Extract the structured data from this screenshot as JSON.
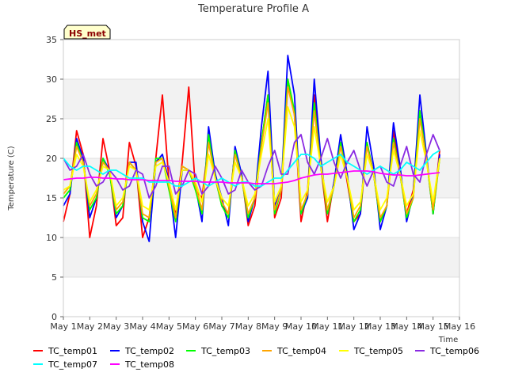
{
  "chart_data": {
    "type": "line",
    "title": "Temperature Profile A",
    "xlabel": "Time",
    "ylabel": "Temperature (C)",
    "badge": "HS_met",
    "xlim": [
      "May 1",
      "May 16"
    ],
    "ylim": [
      0,
      35
    ],
    "x_ticks": [
      "May 1",
      "May 2",
      "May 3",
      "May 4",
      "May 5",
      "May 6",
      "May 7",
      "May 8",
      "May 9",
      "May 10",
      "May 11",
      "May 12",
      "May 13",
      "May 14",
      "May 15",
      "May 16"
    ],
    "y_ticks": [
      0,
      5,
      10,
      15,
      20,
      25,
      30,
      35
    ],
    "grid": "horizontal bands",
    "legend_position": "bottom",
    "x_day_of_may": [
      1,
      1.25,
      1.5,
      1.75,
      2,
      2.25,
      2.5,
      2.75,
      3,
      3.25,
      3.5,
      3.75,
      4,
      4.25,
      4.5,
      4.75,
      5,
      5.25,
      5.5,
      5.75,
      6,
      6.25,
      6.5,
      6.75,
      7,
      7.25,
      7.5,
      7.75,
      8,
      8.25,
      8.5,
      8.75,
      9,
      9.25,
      9.5,
      9.75,
      10,
      10.25,
      10.5,
      10.75,
      11,
      11.25,
      11.5,
      11.75,
      12,
      12.25,
      12.5,
      12.75,
      13,
      13.25,
      13.5,
      13.75,
      14,
      14.25,
      14.5,
      14.75,
      15,
      15.25
    ],
    "series": [
      {
        "name": "TC_temp01",
        "color": "#ff0000",
        "values": [
          12,
          15.5,
          23.5,
          20.5,
          10,
          14,
          22.5,
          18.5,
          11.5,
          12.5,
          22,
          19,
          10,
          12.5,
          20,
          28,
          17,
          13,
          19.5,
          29,
          16,
          15,
          22,
          18,
          14,
          13,
          21,
          18,
          11.5,
          14,
          22,
          28,
          12.5,
          15,
          30,
          25.5,
          12,
          16,
          28,
          19,
          12,
          17,
          22,
          17,
          12,
          13,
          22,
          18,
          12,
          14,
          23.5,
          18,
          13,
          16,
          26,
          20,
          13,
          21
        ]
      },
      {
        "name": "TC_temp02",
        "color": "#0000ff",
        "values": [
          14,
          15.5,
          22.5,
          20,
          12.5,
          15,
          20,
          18.5,
          12.5,
          14,
          19.5,
          19.5,
          12,
          9.5,
          19.5,
          20.5,
          17,
          10,
          18.5,
          18.5,
          16.5,
          12,
          24,
          18,
          15,
          11.5,
          21.5,
          18,
          12,
          15,
          24,
          31,
          14,
          16,
          33,
          28,
          13,
          15,
          30,
          20,
          13,
          17,
          23,
          18,
          11,
          13,
          24,
          19,
          11,
          14,
          24.5,
          19,
          12,
          15.5,
          28,
          20.5,
          13,
          20.5
        ]
      },
      {
        "name": "TC_temp03",
        "color": "#00ff00",
        "values": [
          15,
          16,
          22,
          19.5,
          13.5,
          15,
          20,
          18,
          13,
          14,
          19.5,
          18.5,
          12.5,
          12,
          20,
          20,
          16,
          12,
          19,
          18.5,
          16,
          13,
          23,
          17.5,
          14,
          12.5,
          21,
          17.5,
          12.5,
          15,
          22,
          28,
          13,
          16,
          30,
          26,
          13,
          15.5,
          27,
          19,
          13,
          16.5,
          22,
          17.5,
          12,
          13.5,
          22,
          18,
          12,
          14,
          22.5,
          18,
          12.5,
          15,
          26,
          20,
          13,
          20
        ]
      },
      {
        "name": "TC_temp04",
        "color": "#ffa500",
        "values": [
          15.5,
          16.5,
          21.5,
          19.5,
          14,
          15.5,
          19.5,
          18.5,
          13.5,
          14.5,
          19.5,
          18.5,
          13,
          12.5,
          19.5,
          20,
          16.5,
          12.5,
          19,
          18.5,
          16.5,
          13.5,
          22,
          17.5,
          14.5,
          13,
          20.5,
          17.5,
          13,
          15,
          21.5,
          27,
          13.5,
          16,
          29,
          25.5,
          13.5,
          15.5,
          26,
          19,
          13.5,
          16.5,
          21.5,
          17.5,
          12.5,
          14,
          21.5,
          18,
          12.5,
          14,
          22,
          18,
          13,
          15,
          25,
          20,
          13.5,
          20
        ]
      },
      {
        "name": "TC_temp05",
        "color": "#ffff00",
        "values": [
          16,
          16.5,
          20.5,
          19,
          14.5,
          16,
          19,
          18.5,
          14,
          15,
          19,
          18.5,
          14,
          13.5,
          19,
          19.5,
          17,
          13.5,
          18.5,
          18.5,
          17,
          14.5,
          20.5,
          17.5,
          15,
          14,
          19.5,
          17.5,
          14,
          15.5,
          20.5,
          25,
          14.5,
          16.5,
          26.5,
          24,
          14.5,
          16,
          24,
          19,
          14.5,
          16.5,
          20.5,
          17.5,
          13.5,
          14.5,
          20.5,
          18,
          13.5,
          15,
          21,
          18,
          14,
          15.5,
          23.5,
          19.5,
          14.5,
          20
        ]
      },
      {
        "name": "TC_temp06",
        "color": "#8a2be2",
        "values": [
          20,
          18.5,
          19,
          20.5,
          18,
          16.5,
          17,
          18.5,
          17.5,
          16,
          16.5,
          18.5,
          18,
          15,
          16.5,
          19,
          19,
          15.5,
          16.5,
          18.5,
          18,
          15.5,
          16.5,
          19,
          17.5,
          15.5,
          16,
          18.5,
          17,
          16,
          16.5,
          19,
          21,
          18,
          18,
          22,
          23,
          19.5,
          18,
          20,
          22.5,
          19.5,
          17.5,
          19.5,
          21,
          18.5,
          16.5,
          18.5,
          19,
          17,
          16.5,
          19,
          21.5,
          18,
          17,
          20.5,
          23,
          21
        ]
      },
      {
        "name": "TC_temp07",
        "color": "#00ffff",
        "values": [
          20,
          19,
          18.5,
          19,
          19,
          18.5,
          18,
          18.5,
          18.5,
          18,
          17.5,
          17.5,
          17.5,
          17,
          17,
          17,
          17,
          16.5,
          16.5,
          17,
          17.5,
          17,
          16.5,
          17,
          17.5,
          17,
          16.5,
          17,
          17,
          16.5,
          16.5,
          17,
          17.5,
          17.5,
          18.5,
          19.5,
          20.5,
          20.5,
          20,
          19,
          19.5,
          20,
          20.5,
          19.5,
          19,
          18.5,
          18,
          18.5,
          19,
          18.5,
          18,
          18.5,
          19.5,
          19,
          18.5,
          19.5,
          20.5,
          21
        ]
      },
      {
        "name": "TC_temp08",
        "color": "#ff00ff",
        "values": [
          17.3,
          17.4,
          17.5,
          17.5,
          17.6,
          17.6,
          17.5,
          17.5,
          17.4,
          17.4,
          17.3,
          17.3,
          17.3,
          17.2,
          17.2,
          17.2,
          17.2,
          17.1,
          17.1,
          17.1,
          17.1,
          17,
          17,
          17,
          17,
          16.9,
          16.9,
          16.9,
          16.9,
          16.8,
          16.8,
          16.8,
          16.8,
          16.9,
          17,
          17.2,
          17.5,
          17.7,
          17.9,
          18,
          18,
          18.1,
          18.2,
          18.3,
          18.4,
          18.4,
          18.4,
          18.3,
          18.1,
          18,
          17.9,
          17.9,
          17.8,
          17.8,
          17.9,
          18,
          18.1,
          18.2
        ]
      }
    ]
  }
}
